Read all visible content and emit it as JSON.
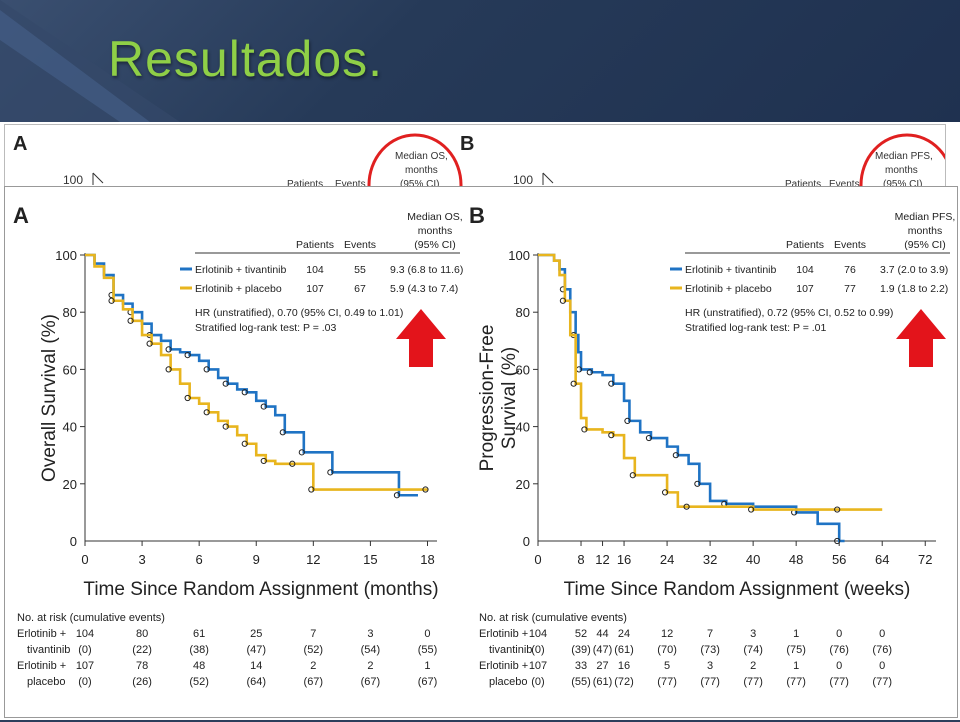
{
  "slide": {
    "title": "Resultados."
  },
  "chart_data": [
    {
      "panel": "A",
      "type": "line",
      "ylabel": "Overall Survival (%)",
      "xlabel": "Time Since Random Assignment (months)",
      "xticks": [
        0,
        3,
        6,
        9,
        12,
        15,
        18
      ],
      "yticks": [
        20,
        40,
        60,
        80,
        100
      ],
      "xlim": [
        0,
        18.5
      ],
      "ylim": [
        0,
        100
      ],
      "legend": {
        "median_header": [
          "Median OS,",
          "months",
          "(95% CI)"
        ],
        "col_patients": "Patients",
        "col_events": "Events",
        "rows": [
          {
            "name": "Erlotinib + tivantinib",
            "patients": "104",
            "events": "55",
            "median": "9.3 (6.8 to 11.6)",
            "color": "#1f73c4"
          },
          {
            "name": "Erlotinib + placebo",
            "patients": "107",
            "events": "67",
            "median": "5.9 (4.3 to 7.4)",
            "color": "#e8b51e"
          }
        ],
        "note1": "HR (unstratified), 0.70 (95% CI, 0.49 to 1.01)",
        "note2": "Stratified log-rank test: P = .03"
      },
      "series": [
        {
          "name": "Erlotinib + tivantinib",
          "color": "#1f73c4",
          "x": [
            0,
            0.5,
            1,
            1.5,
            2,
            2.5,
            3,
            3.5,
            4,
            4.5,
            5,
            5.5,
            6,
            6.5,
            7,
            7.5,
            8,
            8.5,
            9,
            9.5,
            10,
            10.5,
            11,
            11.5,
            12,
            13,
            15,
            16.5,
            17.5
          ],
          "y": [
            100,
            97,
            93,
            86,
            83,
            80,
            76,
            72,
            70,
            67,
            66,
            65,
            63,
            60,
            57,
            55,
            53,
            52,
            49,
            47,
            44,
            38,
            38,
            31,
            31,
            24,
            24,
            16,
            16
          ]
        },
        {
          "name": "Erlotinib + placebo",
          "color": "#e8b51e",
          "x": [
            0,
            0.5,
            1,
            1.5,
            2,
            2.5,
            3,
            3.5,
            4,
            4.5,
            5,
            5.5,
            6,
            6.5,
            7,
            7.5,
            8,
            8.5,
            9,
            9.5,
            10,
            11,
            11.5,
            12,
            15,
            18
          ],
          "y": [
            100,
            96,
            92,
            84,
            81,
            77,
            72,
            69,
            65,
            60,
            55,
            50,
            48,
            45,
            42,
            40,
            37,
            34,
            30,
            28,
            27,
            27,
            27,
            18,
            18,
            18
          ]
        }
      ],
      "risk_table": {
        "header": "No. at risk (cumulative events)",
        "times": [
          "0",
          "3",
          "6",
          "9",
          "12",
          "15",
          "18"
        ],
        "rows": [
          {
            "label": "Erlotinib +",
            "values": [
              "104",
              "80",
              "61",
              "25",
              "7",
              "3",
              "0"
            ]
          },
          {
            "label": "tivantinib",
            "values": [
              "(0)",
              "(22)",
              "(38)",
              "(47)",
              "(52)",
              "(54)",
              "(55)"
            ]
          },
          {
            "label": "Erlotinib +",
            "values": [
              "107",
              "78",
              "48",
              "14",
              "2",
              "2",
              "1"
            ]
          },
          {
            "label": "placebo",
            "values": [
              "(0)",
              "(26)",
              "(52)",
              "(64)",
              "(67)",
              "(67)",
              "(67)"
            ]
          }
        ]
      }
    },
    {
      "panel": "B",
      "type": "line",
      "ylabel": "Progression-Free Survival (%)",
      "xlabel": "Time Since Random Assignment (weeks)",
      "xticks": [
        0,
        8,
        12,
        16,
        24,
        32,
        40,
        48,
        56,
        64,
        72
      ],
      "yticks": [
        20,
        40,
        60,
        80,
        100
      ],
      "xlim": [
        0,
        74
      ],
      "ylim": [
        0,
        100
      ],
      "legend": {
        "median_header": [
          "Median PFS,",
          "months",
          "(95% CI)"
        ],
        "col_patients": "Patients",
        "col_events": "Events",
        "rows": [
          {
            "name": "Erlotinib + tivantinib",
            "patients": "104",
            "events": "76",
            "median": "3.7 (2.0 to 3.9)",
            "color": "#1f73c4"
          },
          {
            "name": "Erlotinib + placebo",
            "patients": "107",
            "events": "77",
            "median": "1.9 (1.8 to 2.2)",
            "color": "#e8b51e"
          }
        ],
        "note1": "HR (unstratified), 0.72 (95% CI, 0.52 to 0.99)",
        "note2": "Stratified log-rank test: P = .01"
      },
      "series": [
        {
          "name": "Erlotinib + tivantinib",
          "color": "#1f73c4",
          "x": [
            0,
            3,
            4,
            5,
            6,
            7,
            7.5,
            8,
            9,
            10,
            12,
            14,
            16,
            17,
            19,
            21,
            24,
            26,
            28,
            30,
            32,
            35,
            40,
            48,
            52,
            56,
            57
          ],
          "y": [
            100,
            98,
            95,
            88,
            80,
            72,
            66,
            60,
            60,
            59,
            58,
            55,
            49,
            42,
            38,
            36,
            33,
            30,
            27,
            20,
            14,
            13,
            12,
            10,
            6,
            0,
            0
          ]
        },
        {
          "name": "Erlotinib + placebo",
          "color": "#e8b51e",
          "x": [
            0,
            3,
            4,
            5,
            6,
            7,
            8,
            9,
            12,
            14,
            16,
            18,
            20,
            24,
            26,
            28,
            32,
            40,
            48,
            56,
            64
          ],
          "y": [
            100,
            98,
            93,
            84,
            72,
            55,
            43,
            39,
            38,
            37,
            29,
            23,
            23,
            17,
            12,
            12,
            12,
            11,
            11,
            11,
            11
          ]
        }
      ],
      "risk_table": {
        "header": "No. at risk (cumulative events)",
        "times": [
          "0",
          "8",
          "12",
          "16",
          "24",
          "32",
          "40",
          "48",
          "56",
          "64",
          "72"
        ],
        "rows": [
          {
            "label": "Erlotinib +",
            "values": [
              "104",
              "52",
              "44",
              "24",
              "12",
              "7",
              "3",
              "1",
              "0",
              "0",
              ""
            ]
          },
          {
            "label": "tivantinib",
            "values": [
              "(0)",
              "(39)",
              "(47)",
              "(61)",
              "(70)",
              "(73)",
              "(74)",
              "(75)",
              "(76)",
              "(76)",
              ""
            ]
          },
          {
            "label": "Erlotinib +",
            "values": [
              "107",
              "33",
              "27",
              "16",
              "5",
              "3",
              "2",
              "1",
              "0",
              "0",
              ""
            ]
          },
          {
            "label": "placebo",
            "values": [
              "(0)",
              "(55)",
              "(61)",
              "(72)",
              "(77)",
              "(77)",
              "(77)",
              "(77)",
              "(77)",
              "(77)",
              ""
            ]
          }
        ]
      }
    }
  ],
  "strip": {
    "panel_a": "A",
    "panel_b": "B",
    "y100": "100",
    "median_os": [
      "Median OS,",
      "months",
      "(95% CI)"
    ],
    "median_pfs": [
      "Median PFS,",
      "months",
      "(95% CI)"
    ],
    "patients": "Patients",
    "events": "Events"
  }
}
